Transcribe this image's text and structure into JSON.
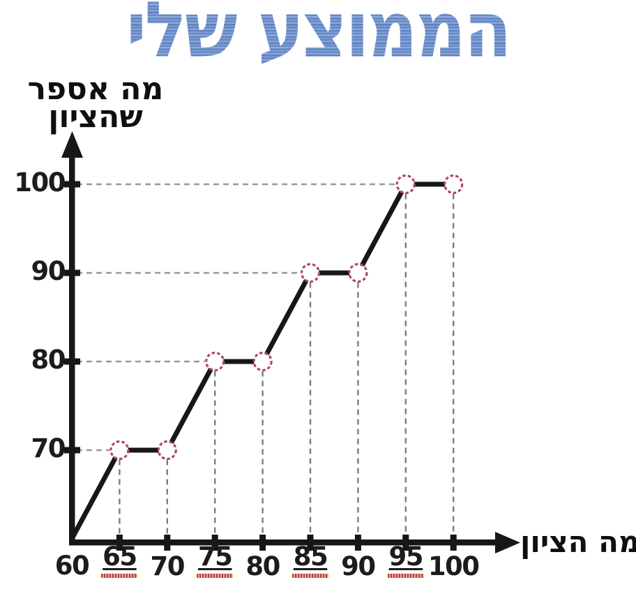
{
  "title": "הממוצע שלי",
  "colors": {
    "title_blue": "#6b8dc7",
    "axis_black": "#171717",
    "line_black": "#171717",
    "marker_stroke": "#ad4b63",
    "marker_fill": "#ffffff",
    "guide_gray_vertical": "#7d7d7d",
    "guide_gray_horizontal": "#979797",
    "tick_label": "#1c1c1c",
    "underline_red": "#b8322a"
  },
  "chart_data": {
    "type": "line",
    "title": "הממוצע שלי",
    "xlabel": "מה הציון",
    "ylabel": "מה אספר שהציון",
    "ylabel_lines": [
      "מה אספר",
      "שהציון"
    ],
    "x": [
      65,
      70,
      75,
      80,
      85,
      90,
      95,
      100
    ],
    "y": [
      70,
      70,
      80,
      80,
      90,
      90,
      100,
      100
    ],
    "line_start": [
      60,
      60
    ],
    "x_tick_labels": [
      60,
      65,
      70,
      75,
      80,
      85,
      90,
      95,
      100
    ],
    "x_ticks_marked": [
      65,
      70,
      75,
      80,
      85,
      90,
      95,
      100
    ],
    "x_ticks_underlined": [
      65,
      75,
      85,
      95
    ],
    "y_ticks": [
      70,
      80,
      90,
      100
    ],
    "xlim": [
      60,
      100
    ],
    "ylim": [
      60,
      100
    ],
    "marker": "open-circle-dashed",
    "guides": "dashed lines from each data point to both axes",
    "grid": false,
    "legend": null
  }
}
